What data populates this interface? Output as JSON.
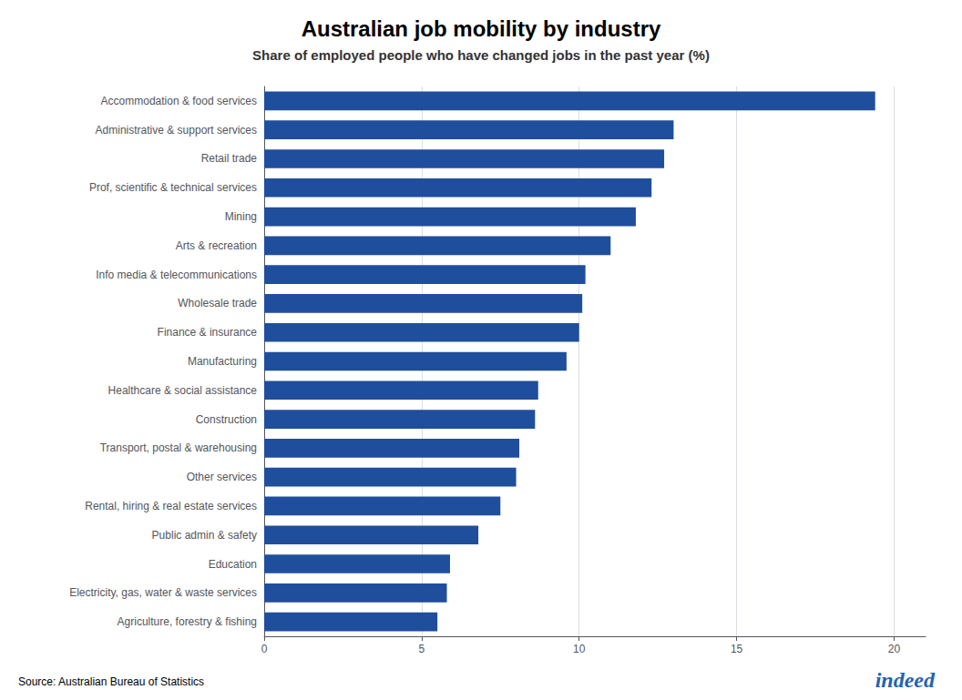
{
  "chart_data": {
    "type": "bar",
    "orientation": "horizontal",
    "title": "Australian job mobility by industry",
    "subtitle": "Share of employed people who have changed jobs in the past year (%)",
    "categories": [
      "Accommodation & food services",
      "Administrative & support services",
      "Retail trade",
      "Prof, scientific & technical services",
      "Mining",
      "Arts & recreation",
      "Info media & telecommunications",
      "Wholesale trade",
      "Finance & insurance",
      "Manufacturing",
      "Healthcare & social assistance",
      "Construction",
      "Transport, postal & warehousing",
      "Other services",
      "Rental, hiring & real estate services",
      "Public admin & safety",
      "Education",
      "Electricity, gas, water & waste services",
      "Agriculture, forestry & fishing"
    ],
    "values": [
      19.4,
      13.0,
      12.7,
      12.3,
      11.8,
      11.0,
      10.2,
      10.1,
      10.0,
      9.6,
      8.7,
      8.6,
      8.1,
      8.0,
      7.5,
      6.8,
      5.9,
      5.8,
      5.5
    ],
    "color": "#1f4e9c",
    "xlim": [
      0,
      21
    ],
    "xticks": [
      0,
      5,
      10,
      15,
      20
    ],
    "grid": true,
    "annotations": [
      "Source: Australian Bureau of Statistics",
      "indeed"
    ]
  }
}
